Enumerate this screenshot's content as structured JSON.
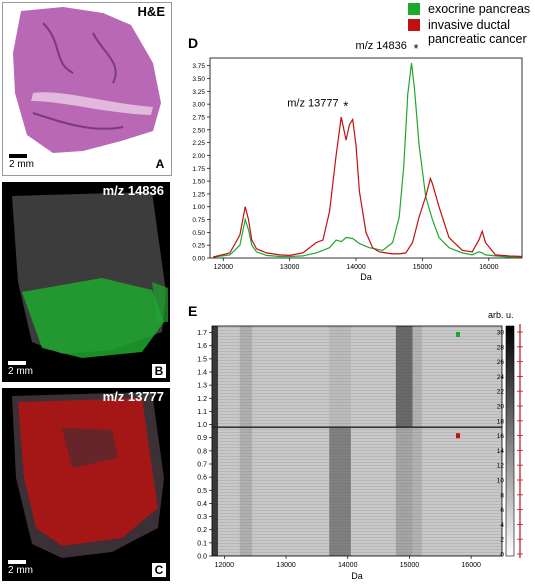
{
  "colors": {
    "green": "#1fa82e",
    "red": "#c01010",
    "tissue": "#b05aa8"
  },
  "panel_a": {
    "title": "H&E",
    "letter": "A",
    "scale": "2 mm"
  },
  "panel_b": {
    "title": "m/z 14836",
    "letter": "B",
    "scale": "2 mm"
  },
  "panel_c": {
    "title": "m/z 13777",
    "letter": "C",
    "scale": "2 mm"
  },
  "panel_d": {
    "letter": "D",
    "xlabel": "Da",
    "annot_1": "m/z 13777",
    "annot_2": "m/z 14836",
    "star": "*"
  },
  "panel_e": {
    "letter": "E",
    "xlabel": "Da",
    "colorbar_title": "arb. u."
  },
  "legend": {
    "items": [
      {
        "label": "exocrine pancreas",
        "color": "#1fa82e"
      },
      {
        "label": "invasive ductal pancreatic cancer",
        "color": "#c01010"
      }
    ]
  },
  "chart_data": [
    {
      "type": "line",
      "xlim": [
        11800,
        16500
      ],
      "ylim": [
        0,
        3.9
      ],
      "xticks": [
        12000,
        13000,
        14000,
        15000,
        16000
      ],
      "yticks": [
        0.0,
        0.25,
        0.5,
        0.75,
        1.0,
        1.25,
        1.5,
        1.75,
        2.0,
        2.25,
        2.5,
        2.75,
        3.0,
        3.25,
        3.5,
        3.75
      ],
      "xlabel": "Da",
      "series": [
        {
          "name": "exocrine pancreas",
          "color": "#1fa82e",
          "x": [
            11850,
            12100,
            12250,
            12330,
            12380,
            12430,
            12500,
            12650,
            12850,
            13000,
            13200,
            13400,
            13600,
            13700,
            13780,
            13850,
            13950,
            14050,
            14200,
            14400,
            14550,
            14650,
            14720,
            14780,
            14836,
            14880,
            14950,
            15050,
            15150,
            15250,
            15400,
            15600,
            15750,
            15850,
            15900,
            15950,
            16100,
            16300,
            16500
          ],
          "y": [
            0.02,
            0.06,
            0.25,
            0.75,
            0.55,
            0.25,
            0.12,
            0.05,
            0.03,
            0.03,
            0.04,
            0.1,
            0.2,
            0.35,
            0.32,
            0.4,
            0.38,
            0.28,
            0.2,
            0.15,
            0.3,
            0.8,
            1.8,
            3.2,
            3.8,
            3.3,
            2.2,
            1.2,
            0.75,
            0.4,
            0.2,
            0.1,
            0.06,
            0.12,
            0.1,
            0.06,
            0.04,
            0.02,
            0.02
          ]
        },
        {
          "name": "invasive ductal pancreatic cancer",
          "color": "#c01010",
          "x": [
            11850,
            12100,
            12250,
            12330,
            12380,
            12430,
            12500,
            12650,
            12850,
            13000,
            13200,
            13400,
            13500,
            13600,
            13700,
            13777,
            13850,
            13900,
            13950,
            14000,
            14050,
            14150,
            14250,
            14350,
            14450,
            14550,
            14650,
            14750,
            14850,
            14950,
            15050,
            15120,
            15150,
            15250,
            15400,
            15600,
            15750,
            15850,
            15900,
            15950,
            16100,
            16300,
            16500
          ],
          "y": [
            0.02,
            0.1,
            0.45,
            1.0,
            0.75,
            0.35,
            0.18,
            0.1,
            0.06,
            0.05,
            0.1,
            0.3,
            0.35,
            0.9,
            2.0,
            2.75,
            2.3,
            2.6,
            2.7,
            2.2,
            1.3,
            0.5,
            0.2,
            0.12,
            0.1,
            0.08,
            0.08,
            0.1,
            0.3,
            0.8,
            1.2,
            1.55,
            1.45,
            1.0,
            0.4,
            0.15,
            0.12,
            0.35,
            0.52,
            0.3,
            0.06,
            0.04,
            0.03
          ]
        }
      ]
    },
    {
      "type": "heatmap",
      "xlim": [
        11800,
        16500
      ],
      "ylim": [
        0,
        1.75
      ],
      "xticks": [
        12000,
        13000,
        14000,
        15000,
        16000
      ],
      "yticks": [
        0.0,
        0.1,
        0.2,
        0.3,
        0.4,
        0.5,
        0.6,
        0.7,
        0.8,
        0.9,
        1.0,
        1.1,
        1.2,
        1.3,
        1.4,
        1.5,
        1.6,
        1.7
      ],
      "xlabel": "Da",
      "colorbar_ticks": [
        0,
        2,
        4,
        6,
        8,
        10,
        12,
        14,
        16,
        18,
        20,
        22,
        24,
        26,
        28,
        30
      ],
      "colorbar_label": "arb. u.",
      "boundary_y": 0.98
    }
  ]
}
